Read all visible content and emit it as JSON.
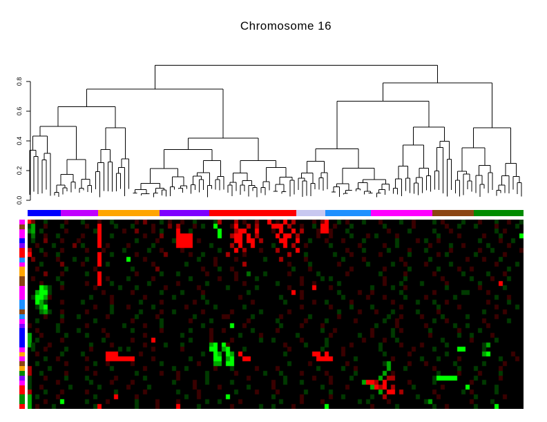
{
  "chart_data": {
    "type": "heatmap",
    "title": "Chromosome 16",
    "subtitle": "",
    "legend": "none",
    "grid": "off",
    "axis": {
      "side": "left",
      "tick_values": [
        0.0,
        0.2,
        0.4,
        0.6,
        0.8
      ],
      "tick_labels": [
        "0.0",
        "0.2",
        "0.4",
        "0.6",
        "0.8"
      ],
      "range": [
        0.0,
        0.92
      ],
      "label_rotation_deg": -90
    },
    "dendrogram": {
      "leaves": 120,
      "root_height": 0.91,
      "root_split": 65,
      "left_height": 0.75,
      "right_height": 0.79,
      "seed": 9
    },
    "col_classes": {
      "segments": [
        {
          "color": "#0000FF",
          "count": 8
        },
        {
          "color": "#C000FF",
          "count": 9
        },
        {
          "color": "#FFA500",
          "count": 15
        },
        {
          "color": "#7F00FF",
          "count": 12
        },
        {
          "color": "#FF0000",
          "count": 21
        },
        {
          "color": "#C8C8F0",
          "count": 7
        },
        {
          "color": "#1E90FF",
          "count": 11
        },
        {
          "color": "#FF00FF",
          "count": 15
        },
        {
          "color": "#8B4513",
          "count": 10
        },
        {
          "color": "#008B00",
          "count": 12
        }
      ]
    },
    "row_classes": {
      "colors": [
        "#FF00FF",
        "#8B4513",
        "#FF00FF",
        "#FF00FF",
        "#0000FF",
        "#8000FF",
        "#FF0000",
        "#FF0000",
        "#1E90FF",
        "#FF00FF",
        "#FFA500",
        "#FFA500",
        "#8B4513",
        "#8B4513",
        "#FF00FF",
        "#FF00FF",
        "#FF00FF",
        "#1E90FF",
        "#1E90FF",
        "#8B4513",
        "#1E90FF",
        "#FF00FF",
        "#8000FF",
        "#0000FF",
        "#0000FF",
        "#0000FF",
        "#0000FF",
        "#FF00FF",
        "#FFA500",
        "#FF00FF",
        "#8B4513",
        "#FFA500",
        "#008B00",
        "#8000FF",
        "#FF00FF",
        "#FF0000",
        "#FF0000",
        "#008B00",
        "#008B00",
        "#FF0000"
      ]
    },
    "heatmap": {
      "rows": 40,
      "cols": 120,
      "up_color": "#FF0000",
      "down_color": "#00FF00",
      "neutral_color": "#000000",
      "palette": {
        ".": "#000000",
        "r": "#3A0000",
        "q": "#700000",
        "R": "#A80000",
        "E": "#FF0000",
        "g": "#003A00",
        "h": "#006E00",
        "G": "#00A800",
        "H": "#00FF00"
      },
      "cells": [
        "Eq..g....r...g...r..g.....r.q...g.r..r..g....gR...R.r..q..E.r.E.R....r.qE..g.r...g...r....g..r....g.r....g...r...g..r..g",
        "gG..r...g.....r..E...g...g....r...q.R...r.g..H...rE..R.R...EEE.R..r..g.EE.r...g.......g......r.......r..g...g....r....g.",
        "hG.g.....r......gE.....r..q...r.g...E..g......H...REE..E...r.E..E.R...rEEr...g.........r....g.....g...r..........g.r....",
        ".h..r..g.....r...E..g.......r...q...EEEE......H..REE.E.R....E.EE.R....r..r....g...r.g....r.........g....r.....r...g....H",
        ".g..q...r...r....E........g....r...gEEEE.r........EE.EE.R....EE..E..g...r...r....g.......g....r.g..r.........g....r..g..",
        "..r...g....q.g...E.r....r.....g.....EEEE....g....R.E..E....g..E.R..r.....g......r.....r..g.......r....g..r.....g....r...",
        "R..g....r.....r...r....g.....g..r....r........g...E.R...r...R....E...........r...g.....g....r...g.....r......r..g......r",
        "E...r..g.........E..g.....r......q.....r..g.....R...r..........R...g......g...r......r......g......r.g......g......r....",
        ".q.....r...g..g..E......H...r............g...r....r......g...R.....r........g....r........r......g........r...r...g.....",
        "...g....q....r...E.g..........r.......g......r......R..........r....g......r......g.....g..r....r.....g..........r....g.",
        "..r......g......r........g.....q..........r...g..r..............g...r.........r.......r.....g......g....r..r........g..",
        "....q...r.....g..E........r.....g...g......r apostrophe..g.....r......g......r.......g.....r......r......g.....g...r....",
        ".r.....g.........E.r....g.....r........g......r...r....g..........r....g.g............r....g........r......g....r...g",
        "...r....g.....r..E..g........g......r......g........r.......g.....r..r.....g..........r...g....g.....r.......g....E..",
        "...HGg..r.......r.....g...g......r.......r......g......g.......r.....E...r.........g....g..r.........g.......r.....g...",
        "..GHHg............r......r......g....g....r..........g..........E.r........g....r..r......g.......r......gg....r......",
        ".gHHGr.........g....r.......r......g......g........r.........g....r.........g.....r...r....g....r......g....    .g..r...",
        "..HGg...r....g......r......g....r.......r..g..........r.......g......r..g.....r.........r.....g...g..r.........r....g...",
        "..gGH...........r...g...r.....g.......r......g......g.............r......r....g....g......r........g....r........r....g",
        "...hGg..r.....r.....g......g....r..g......r......r......g......r...........g....r...r...g.....g....r..........g....r..",
        "....r...g...g......r......g....r........g......rr.....g......r......g......r...........g..r....r....g.....g......r...",
        "..g.....r.......g........r......g......r....g........r......g......r....g......r......g..r........g..r........r.....g....",
        "r......g......r........g....r...g.........g......H..r........g....r....r............g....r......r......g..g....r....",
        "..r....g....g.....r......g......r......g....r..r......g.....r..........g..r........r....g.r......g......r....g...",
        "G..r.....g....g....r........r........g......r......g....r........g.......r......g..r....g........r......g..g....r.....",
        "G.g.....r.........g......r....E........g....r....r......g..g......r.....g........r....r..g..........g......r.....g...",
        "Gg...r.........g....r.......r....g...g......GH.Hr.............r....g....g.....r......g....r....r.....g........gG......",
        ".g..r....g.....r......g.g.....r......r......HH.GH...g..........r.......g....r........g.......r....g.....HH....g...",
        "..r.....g....g.....EEE.....r..............g..HG.HG.E..........g......EE.E...r.........g.....r........g........GH.....r..",
        "....g..r......r....EEEEEEE....r........g.....HH.GH..EE................EEEE.....g........r......g...g....r.........g...r..",
        "..g......r......g..r.....r......g........r...GG.HH.............g....r........r........gG....r...r......g......g....r...",
        "R....g........r.....g.......r......g..g......r...g.....r....r.........g.....g..r.......G...g......r.....g...g.....r.....",
        "R..g.....r......r.........g.....r...r......g......r......g...g....r.....r......g......G.r..........g....r....r....g....",
        "g...r....g....g......r......g.......r......g.........r........g......r...r....g......G.RR.........gHHHHH....g.....r..",
        "g......r.......g....r....r.........g....r..g.....g.........r..g...g......r.......GEER.E.....r.....g........r..g....",
        "g..r......g......g......r....g..........r.....r......g.....r...........g.....r.....GERE.R....g......r.....H......g..",
        "R...g...r.....r......g......r.......g....r........g....r....r......g.....g...........G.EE.R.......r......g.r.....g....",
        "G.g....r........g....E....r...........g..r......H..........g......r......r..g......g..R.......g....r........g......r",
        "G...r...H.....g....r......g....r....r......g..g....r.........g....r....r........g.g....r........gG.........r....g....",
        "G.r...g.........gE........g....r....E....g.......r......g..g....r.......H..........r.....g........g..r......g....H...."
      ]
    }
  },
  "labels": {
    "figure_role": "cluster-heatmap-figure"
  }
}
